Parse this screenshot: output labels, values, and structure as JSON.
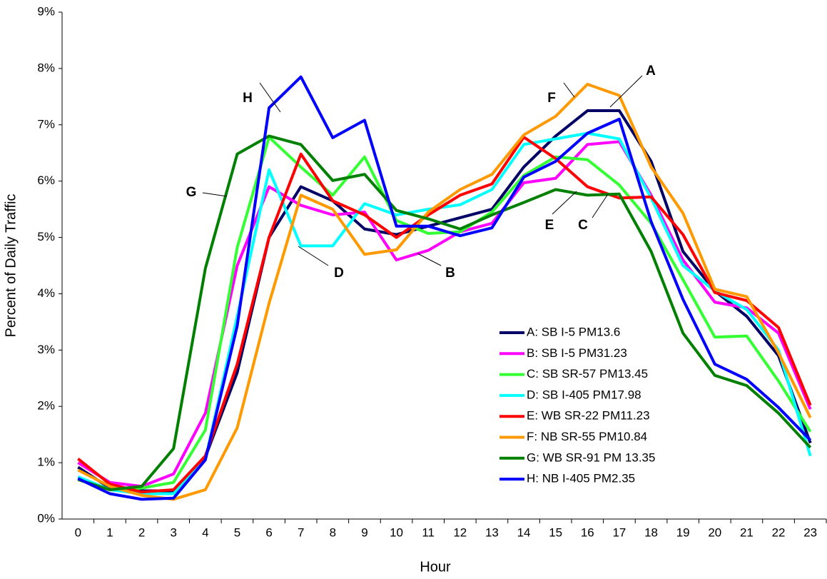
{
  "chart_data": {
    "type": "line",
    "x_label": "Hour",
    "y_label": "Percent of Daily Traffic",
    "categories": [
      "0",
      "1",
      "2",
      "3",
      "4",
      "5",
      "6",
      "7",
      "8",
      "9",
      "10",
      "11",
      "12",
      "13",
      "14",
      "15",
      "16",
      "17",
      "18",
      "19",
      "20",
      "21",
      "22",
      "23"
    ],
    "ylim": [
      0,
      9
    ],
    "yticks": [
      {
        "value": 0,
        "label": "0%"
      },
      {
        "value": 1,
        "label": "1%"
      },
      {
        "value": 2,
        "label": "2%"
      },
      {
        "value": 3,
        "label": "3%"
      },
      {
        "value": 4,
        "label": "4%"
      },
      {
        "value": 5,
        "label": "5%"
      },
      {
        "value": 6,
        "label": "6%"
      },
      {
        "value": 7,
        "label": "7%"
      },
      {
        "value": 8,
        "label": "8%"
      },
      {
        "value": 9,
        "label": "9%"
      }
    ],
    "grid": false,
    "legend": "lower-right",
    "series": [
      {
        "name": "A: SB I-5 PM13.6",
        "color": "#000066",
        "values": [
          0.92,
          0.55,
          0.5,
          0.5,
          1.1,
          2.6,
          5.0,
          5.9,
          5.65,
          5.15,
          5.05,
          5.2,
          5.35,
          5.5,
          6.25,
          6.8,
          7.25,
          7.25,
          6.35,
          4.75,
          4.05,
          3.6,
          2.9,
          1.35
        ]
      },
      {
        "name": "B: SB I-5 PM31.23",
        "color": "#ff00ff",
        "values": [
          1.0,
          0.65,
          0.58,
          0.8,
          1.88,
          4.5,
          5.9,
          5.57,
          5.4,
          5.45,
          4.6,
          4.77,
          5.1,
          5.25,
          5.97,
          6.05,
          6.65,
          6.7,
          5.75,
          4.6,
          3.85,
          3.75,
          3.3,
          1.95
        ]
      },
      {
        "name": "C: SB SR-57 PM13.45",
        "color": "#33ff33",
        "values": [
          0.72,
          0.52,
          0.55,
          0.65,
          1.58,
          4.82,
          6.78,
          6.25,
          5.75,
          6.43,
          5.3,
          5.07,
          5.1,
          5.45,
          6.1,
          6.43,
          6.38,
          5.93,
          5.25,
          4.25,
          3.23,
          3.25,
          2.45,
          1.55
        ]
      },
      {
        "name": "D: SB I-405 PM17.98",
        "color": "#00ffff",
        "values": [
          0.75,
          0.52,
          0.45,
          0.45,
          1.05,
          3.6,
          6.2,
          4.85,
          4.85,
          5.6,
          5.4,
          5.5,
          5.58,
          5.85,
          6.65,
          6.75,
          6.85,
          6.75,
          5.7,
          4.5,
          4.05,
          3.72,
          3.0,
          1.12
        ]
      },
      {
        "name": "E: WB SR-22 PM11.23",
        "color": "#ff0000",
        "values": [
          1.07,
          0.62,
          0.48,
          0.52,
          1.12,
          2.75,
          5.0,
          6.48,
          5.65,
          5.4,
          5.0,
          5.4,
          5.75,
          5.95,
          6.78,
          6.4,
          5.9,
          5.7,
          5.72,
          5.05,
          4.02,
          3.88,
          3.4,
          2.02
        ]
      },
      {
        "name": "F: NB SR-55 PM10.84",
        "color": "#ff9900",
        "values": [
          0.87,
          0.58,
          0.42,
          0.35,
          0.52,
          1.62,
          3.83,
          5.75,
          5.5,
          4.7,
          4.78,
          5.45,
          5.85,
          6.12,
          6.82,
          7.15,
          7.72,
          7.52,
          6.25,
          5.43,
          4.08,
          3.95,
          2.95,
          1.8
        ]
      },
      {
        "name": "G: WB SR-91 PM 13.35",
        "color": "#008000",
        "values": [
          0.7,
          0.52,
          0.58,
          1.25,
          4.45,
          6.48,
          6.8,
          6.65,
          6.01,
          6.12,
          5.48,
          5.33,
          5.15,
          5.4,
          5.62,
          5.85,
          5.75,
          5.77,
          4.75,
          3.3,
          2.55,
          2.37,
          1.88,
          1.27
        ]
      },
      {
        "name": "H: NB I-405 PM2.35",
        "color": "#0000ff",
        "values": [
          0.72,
          0.45,
          0.35,
          0.37,
          1.05,
          3.43,
          7.3,
          7.85,
          6.77,
          7.08,
          5.2,
          5.2,
          5.03,
          5.17,
          6.07,
          6.35,
          6.85,
          7.1,
          5.28,
          3.9,
          2.75,
          2.48,
          1.98,
          1.4
        ]
      }
    ],
    "annotations": [
      "H",
      "F",
      "A",
      "G",
      "D",
      "B",
      "E",
      "C"
    ]
  }
}
